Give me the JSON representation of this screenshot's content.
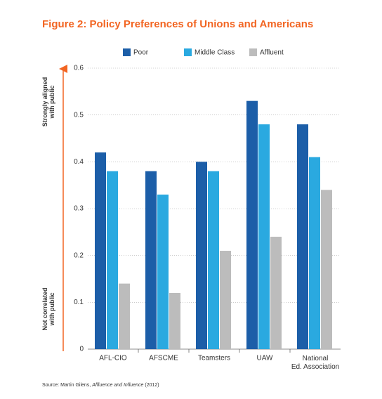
{
  "chart_data": {
    "type": "bar",
    "title": "Figure 2: Policy Preferences of Unions and Americans",
    "categories": [
      "AFL-CIO",
      "AFSCME",
      "Teamsters",
      "UAW",
      [
        "National",
        "Ed. Association"
      ]
    ],
    "series": [
      {
        "name": "Poor",
        "color": "#1c5ea8",
        "values": [
          0.42,
          0.38,
          0.4,
          0.53,
          0.48
        ]
      },
      {
        "name": "Middle Class",
        "color": "#2aa9e0",
        "values": [
          0.38,
          0.33,
          0.38,
          0.48,
          0.41
        ]
      },
      {
        "name": "Affluent",
        "color": "#bcbcbc",
        "values": [
          0.14,
          0.12,
          0.21,
          0.24,
          0.34
        ]
      }
    ],
    "ylim": [
      0,
      0.6
    ],
    "yticks": [
      0,
      0.1,
      0.2,
      0.3,
      0.4,
      0.5,
      0.6
    ],
    "grid": true,
    "annotations": {
      "top": [
        "Strongly aligned",
        "with public"
      ],
      "bottom": [
        "Not correlated",
        "with public"
      ]
    },
    "source": [
      "Source: Martin Gilens, ",
      "Affluence and Influence",
      " (2012)"
    ]
  }
}
